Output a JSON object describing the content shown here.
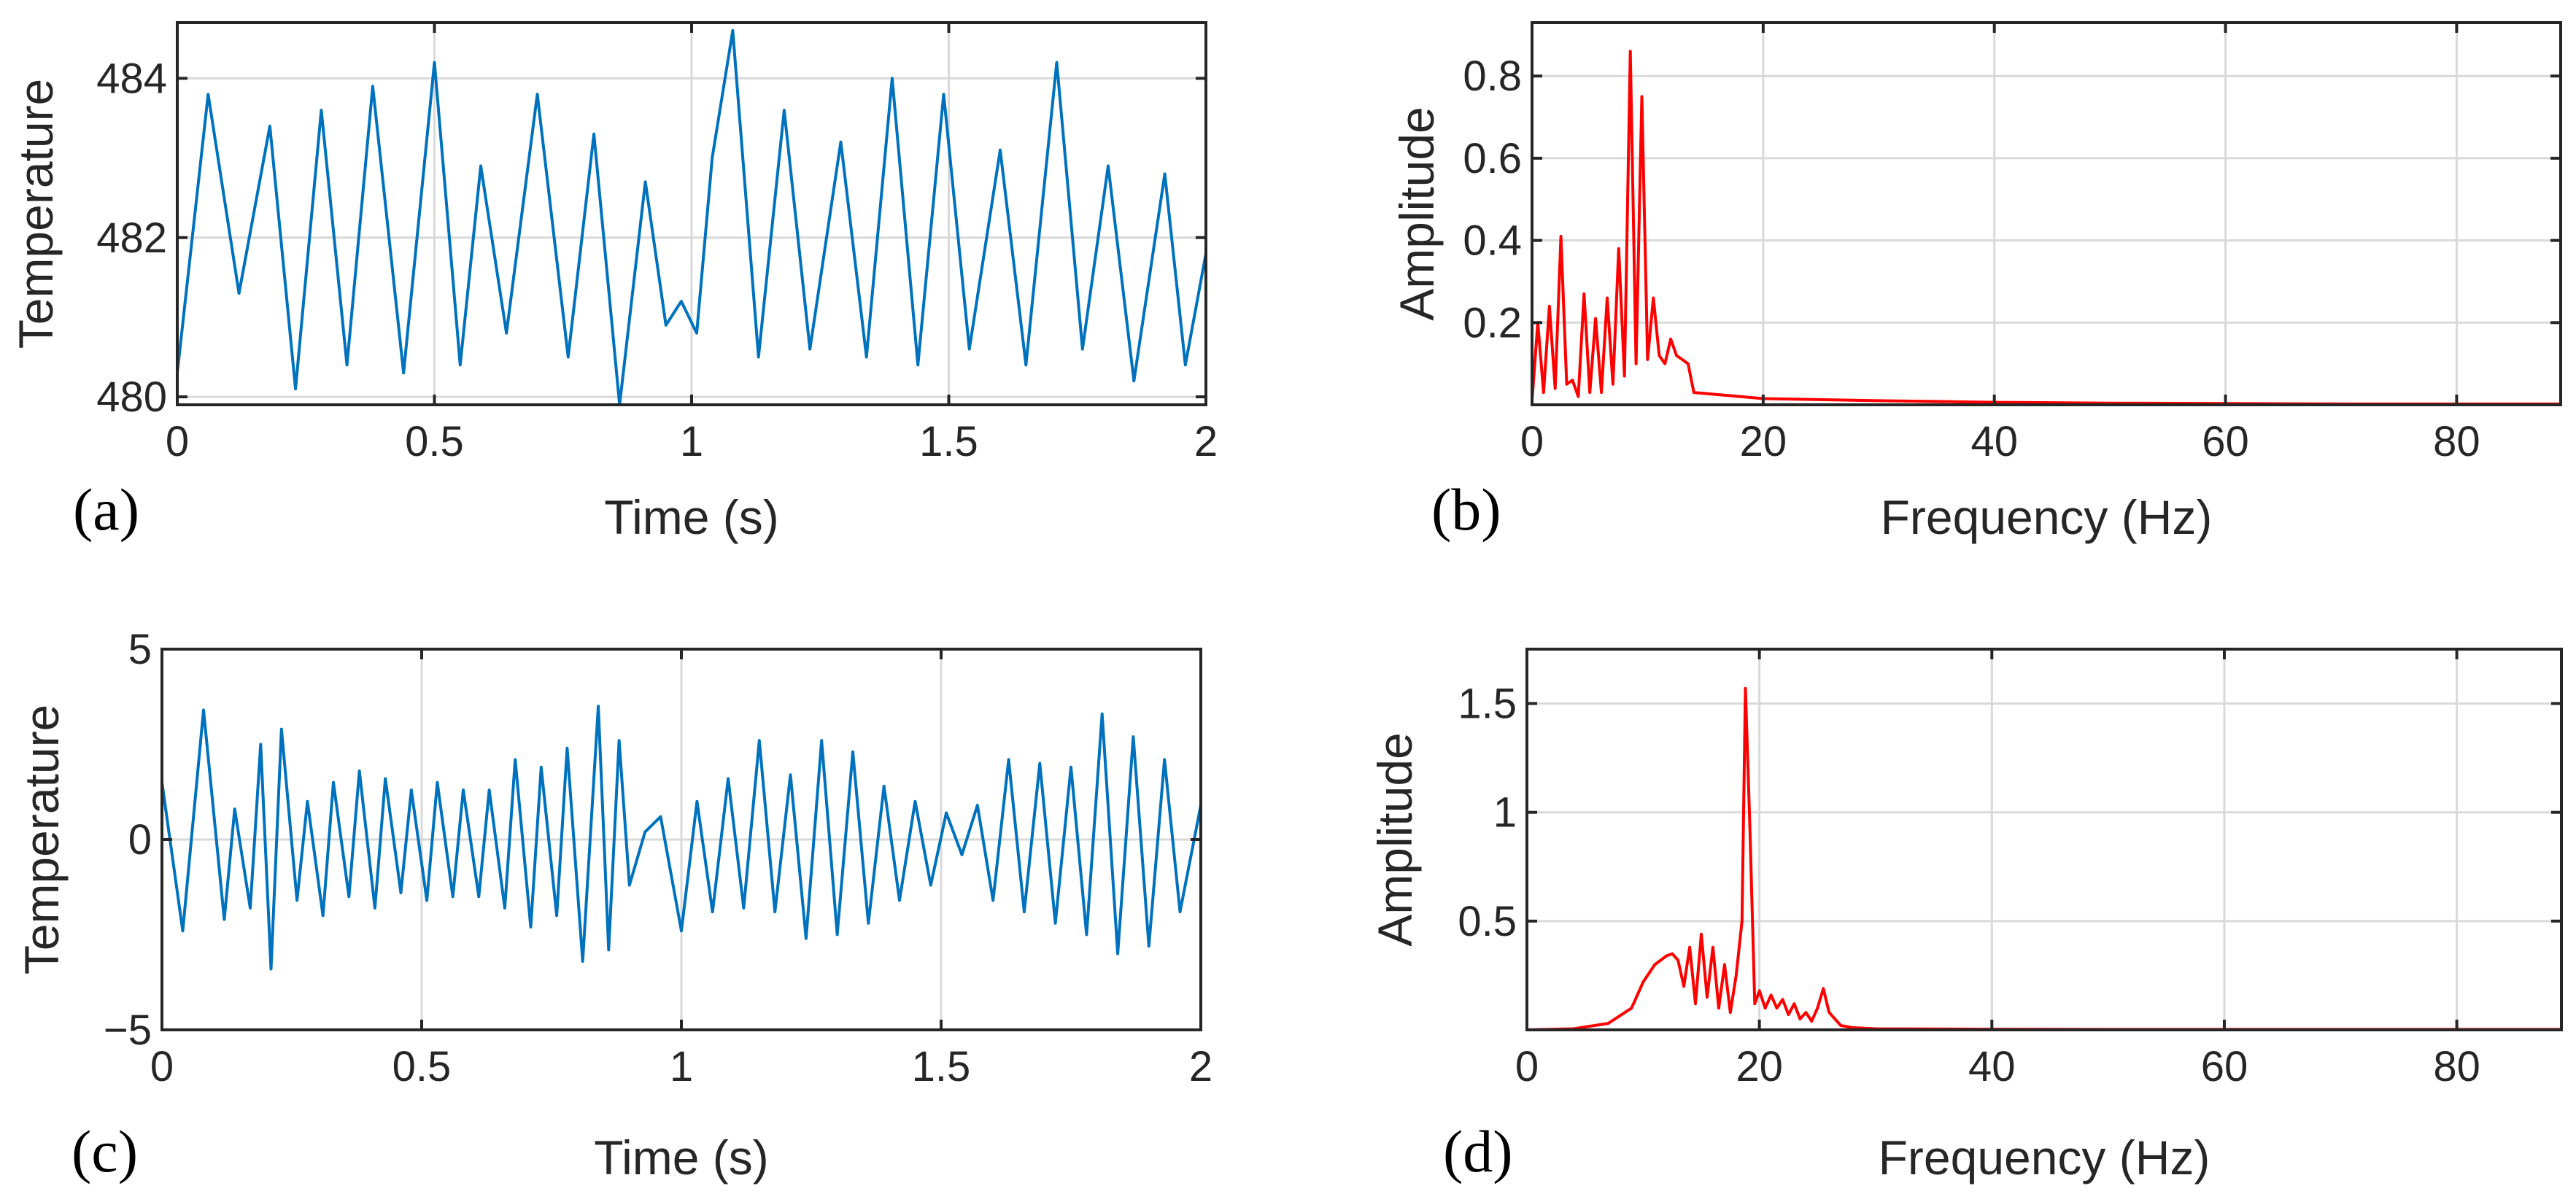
{
  "colors": {
    "time_series": "#0072BD",
    "spectrum": "#FF0000",
    "axes": "#262626",
    "grid": "#D9D9D9"
  },
  "chart_data": [
    {
      "id": "a",
      "panel_label": "(a)",
      "type": "line",
      "xlabel": "Time (s)",
      "ylabel": "Temperature",
      "xlim": [
        0,
        2
      ],
      "ylim": [
        479.9,
        484.7
      ],
      "xticks": [
        0,
        0.5,
        1,
        1.5,
        2
      ],
      "xtick_labels": [
        "0",
        "0.5",
        "1",
        "1.5",
        "2"
      ],
      "yticks": [
        480,
        482,
        484
      ],
      "ytick_labels": [
        "480",
        "482",
        "484"
      ],
      "grid": true,
      "series": [
        {
          "name": "temperature",
          "color": "#0072BD",
          "x": [
            0,
            0.06,
            0.12,
            0.18,
            0.23,
            0.28,
            0.33,
            0.38,
            0.44,
            0.5,
            0.55,
            0.59,
            0.64,
            0.7,
            0.76,
            0.81,
            0.86,
            0.91,
            0.95,
            0.98,
            1.01,
            1.04,
            1.08,
            1.13,
            1.18,
            1.23,
            1.29,
            1.34,
            1.39,
            1.44,
            1.49,
            1.54,
            1.6,
            1.65,
            1.71,
            1.76,
            1.81,
            1.86,
            1.92,
            1.96,
            2.0
          ],
          "y": [
            480.3,
            483.8,
            481.3,
            483.4,
            480.1,
            483.6,
            480.4,
            483.9,
            480.3,
            484.2,
            480.4,
            482.9,
            480.8,
            483.8,
            480.5,
            483.3,
            479.9,
            482.7,
            480.9,
            481.2,
            480.8,
            483.0,
            484.6,
            480.5,
            483.6,
            480.6,
            483.2,
            480.5,
            484.0,
            480.4,
            483.8,
            480.6,
            483.1,
            480.4,
            484.2,
            480.6,
            482.9,
            480.2,
            482.8,
            480.4,
            481.8
          ]
        }
      ]
    },
    {
      "id": "b",
      "panel_label": "(b)",
      "type": "line",
      "xlabel": "Frequency (Hz)",
      "ylabel": "Amplitude",
      "xlim": [
        0,
        89
      ],
      "ylim": [
        0,
        0.93
      ],
      "xticks": [
        0,
        20,
        40,
        60,
        80
      ],
      "xtick_labels": [
        "0",
        "20",
        "40",
        "60",
        "80"
      ],
      "yticks": [
        0.2,
        0.4,
        0.6,
        0.8
      ],
      "ytick_labels": [
        "0.2",
        "0.4",
        "0.6",
        "0.8"
      ],
      "grid": true,
      "series": [
        {
          "name": "amplitude",
          "color": "#FF0000",
          "x": [
            0,
            0.5,
            1.0,
            1.5,
            2.0,
            2.5,
            3.0,
            3.5,
            4.0,
            4.5,
            5.0,
            5.5,
            6.0,
            6.5,
            7.0,
            7.5,
            8.0,
            8.5,
            9.0,
            9.5,
            10.0,
            10.5,
            11.0,
            11.5,
            12.0,
            12.5,
            13.0,
            13.5,
            14.0,
            20,
            30,
            40,
            50,
            60,
            70,
            80,
            89
          ],
          "y": [
            0.01,
            0.2,
            0.03,
            0.24,
            0.04,
            0.41,
            0.05,
            0.06,
            0.02,
            0.27,
            0.03,
            0.21,
            0.03,
            0.26,
            0.05,
            0.38,
            0.07,
            0.86,
            0.1,
            0.75,
            0.11,
            0.26,
            0.12,
            0.1,
            0.16,
            0.12,
            0.11,
            0.1,
            0.03,
            0.015,
            0.01,
            0.006,
            0.004,
            0.003,
            0.002,
            0.002,
            0.002
          ]
        }
      ]
    },
    {
      "id": "c",
      "panel_label": "(c)",
      "type": "line",
      "xlabel": "Time (s)",
      "ylabel": "Temperature",
      "xlim": [
        0,
        2
      ],
      "ylim": [
        -5,
        5
      ],
      "xticks": [
        0,
        0.5,
        1,
        1.5,
        2
      ],
      "xtick_labels": [
        "0",
        "0.5",
        "1",
        "1.5",
        "2"
      ],
      "yticks": [
        -5,
        0,
        5
      ],
      "ytick_labels": [
        "−5",
        "0",
        "5"
      ],
      "grid": true,
      "series": [
        {
          "name": "temperature",
          "color": "#0072BD",
          "x": [
            0,
            0.04,
            0.08,
            0.12,
            0.14,
            0.17,
            0.19,
            0.21,
            0.23,
            0.26,
            0.28,
            0.31,
            0.33,
            0.36,
            0.38,
            0.41,
            0.43,
            0.46,
            0.48,
            0.51,
            0.53,
            0.56,
            0.58,
            0.61,
            0.63,
            0.66,
            0.68,
            0.71,
            0.73,
            0.76,
            0.78,
            0.81,
            0.84,
            0.86,
            0.88,
            0.9,
            0.93,
            0.96,
            1.0,
            1.03,
            1.06,
            1.09,
            1.12,
            1.15,
            1.18,
            1.21,
            1.24,
            1.27,
            1.3,
            1.33,
            1.36,
            1.39,
            1.42,
            1.45,
            1.48,
            1.51,
            1.54,
            1.57,
            1.6,
            1.63,
            1.66,
            1.69,
            1.72,
            1.75,
            1.78,
            1.81,
            1.84,
            1.87,
            1.9,
            1.93,
            1.96,
            2.0
          ],
          "y": [
            1.5,
            -2.4,
            3.4,
            -2.1,
            0.8,
            -1.8,
            2.5,
            -3.4,
            2.9,
            -1.6,
            1.0,
            -2.0,
            1.5,
            -1.5,
            1.8,
            -1.8,
            1.6,
            -1.4,
            1.3,
            -1.6,
            1.5,
            -1.5,
            1.3,
            -1.5,
            1.3,
            -1.8,
            2.1,
            -2.3,
            1.9,
            -2.0,
            2.4,
            -3.2,
            3.5,
            -2.9,
            2.6,
            -1.2,
            0.2,
            0.6,
            -2.4,
            1.0,
            -1.9,
            1.6,
            -1.8,
            2.6,
            -1.9,
            1.7,
            -2.6,
            2.6,
            -2.5,
            2.3,
            -2.2,
            1.4,
            -1.6,
            1.0,
            -1.2,
            0.7,
            -0.4,
            0.9,
            -1.6,
            2.1,
            -1.9,
            2.0,
            -2.2,
            1.9,
            -2.5,
            3.3,
            -3.0,
            2.7,
            -2.8,
            2.1,
            -1.9,
            0.9
          ]
        }
      ]
    },
    {
      "id": "d",
      "panel_label": "(d)",
      "type": "line",
      "xlabel": "Frequency (Hz)",
      "ylabel": "Amplitude",
      "xlim": [
        0,
        89
      ],
      "ylim": [
        0,
        1.75
      ],
      "xticks": [
        0,
        20,
        40,
        60,
        80
      ],
      "xtick_labels": [
        "0",
        "20",
        "40",
        "60",
        "80"
      ],
      "yticks": [
        0.5,
        1,
        1.5
      ],
      "ytick_labels": [
        "0.5",
        "1",
        "1.5"
      ],
      "grid": true,
      "series": [
        {
          "name": "amplitude",
          "color": "#FF0000",
          "x": [
            0,
            4,
            7,
            9,
            10,
            11,
            12,
            12.5,
            13,
            13.5,
            14,
            14.5,
            15,
            15.5,
            16,
            16.5,
            17,
            17.5,
            18,
            18.5,
            18.8,
            19.2,
            19.6,
            20,
            20.5,
            21,
            21.5,
            22,
            22.5,
            23,
            23.5,
            24,
            24.5,
            25,
            25.5,
            26,
            27,
            28,
            30,
            40,
            50,
            60,
            70,
            80,
            89
          ],
          "y": [
            0,
            0.005,
            0.03,
            0.1,
            0.22,
            0.3,
            0.34,
            0.35,
            0.32,
            0.2,
            0.38,
            0.12,
            0.44,
            0.15,
            0.38,
            0.1,
            0.3,
            0.08,
            0.25,
            0.5,
            1.57,
            0.9,
            0.12,
            0.18,
            0.1,
            0.16,
            0.1,
            0.14,
            0.07,
            0.12,
            0.05,
            0.08,
            0.04,
            0.1,
            0.19,
            0.08,
            0.02,
            0.01,
            0.005,
            0.003,
            0.002,
            0.002,
            0.002,
            0.002,
            0.002
          ]
        }
      ]
    }
  ]
}
